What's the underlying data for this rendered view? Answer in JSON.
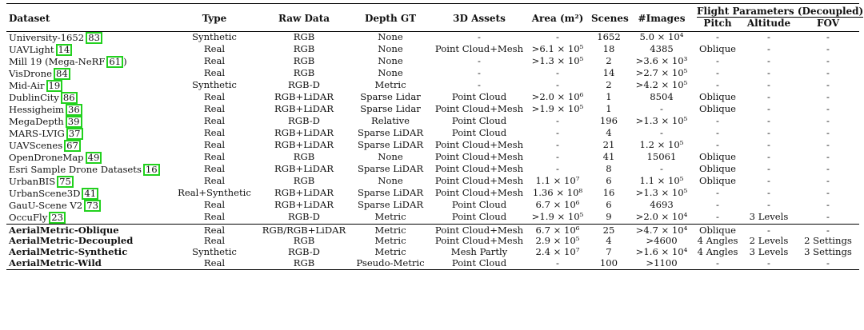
{
  "headers": {
    "dataset": "Dataset",
    "type": "Type",
    "raw_data": "Raw Data",
    "depth_gt": "Depth GT",
    "assets": "3D Assets",
    "area": "Area (m²)",
    "scenes": "Scenes",
    "images": "#Images",
    "flight": "Flight Parameters (Decoupled)",
    "pitch": "Pitch",
    "altitude": "Altitude",
    "fov": "FOV"
  },
  "rows": [
    {
      "name": "University-1652",
      "cite": "83",
      "cite_suffix": "",
      "type": "Synthetic",
      "raw": "RGB",
      "depth": "None",
      "assets": "-",
      "area": "-",
      "scenes": "1652",
      "images": "5.0 × 10⁴",
      "pitch": "-",
      "altitude": "-",
      "fov": "-"
    },
    {
      "name": "UAVLight",
      "cite": "14",
      "cite_suffix": "",
      "type": "Real",
      "raw": "RGB",
      "depth": "None",
      "assets": "Point Cloud+Mesh",
      "area": ">6.1 × 10⁵",
      "scenes": "18",
      "images": "4385",
      "pitch": "Oblique",
      "altitude": "-",
      "fov": "-"
    },
    {
      "name": "Mill 19 (Mega-NeRF",
      "cite": "61",
      "cite_suffix": ")",
      "type": "Real",
      "raw": "RGB",
      "depth": "None",
      "assets": "-",
      "area": ">1.3 × 10⁵",
      "scenes": "2",
      "images": ">3.6 × 10³",
      "pitch": "-",
      "altitude": "-",
      "fov": "-"
    },
    {
      "name": "VisDrone",
      "cite": "84",
      "cite_suffix": "",
      "type": "Real",
      "raw": "RGB",
      "depth": "None",
      "assets": "-",
      "area": "-",
      "scenes": "14",
      "images": ">2.7 × 10⁵",
      "pitch": "-",
      "altitude": "-",
      "fov": "-"
    },
    {
      "name": "Mid-Air",
      "cite": "19",
      "cite_suffix": "",
      "type": "Synthetic",
      "raw": "RGB-D",
      "depth": "Metric",
      "assets": "-",
      "area": "-",
      "scenes": "2",
      "images": ">4.2 × 10⁵",
      "pitch": "-",
      "altitude": "-",
      "fov": "-"
    },
    {
      "name": "DublinCity",
      "cite": "86",
      "cite_suffix": "",
      "type": "Real",
      "raw": "RGB+LiDAR",
      "depth": "Sparse Lidar",
      "assets": "Point Cloud",
      "area": ">2.0 × 10⁶",
      "scenes": "1",
      "images": "8504",
      "pitch": "Oblique",
      "altitude": "-",
      "fov": "-"
    },
    {
      "name": "Hessigheim",
      "cite": "36",
      "cite_suffix": "",
      "type": "Real",
      "raw": "RGB+LiDAR",
      "depth": "Sparse Lidar",
      "assets": "Point Cloud+Mesh",
      "area": ">1.9 × 10⁵",
      "scenes": "1",
      "images": "-",
      "pitch": "Oblique",
      "altitude": "-",
      "fov": "-"
    },
    {
      "name": "MegaDepth",
      "cite": "39",
      "cite_suffix": "",
      "type": "Real",
      "raw": "RGB-D",
      "depth": "Relative",
      "assets": "Point Cloud",
      "area": "-",
      "scenes": "196",
      "images": ">1.3 × 10⁵",
      "pitch": "-",
      "altitude": "-",
      "fov": "-"
    },
    {
      "name": "MARS-LVIG",
      "cite": "37",
      "cite_suffix": "",
      "type": "Real",
      "raw": "RGB+LiDAR",
      "depth": "Sparse LiDAR",
      "assets": "Point Cloud",
      "area": "-",
      "scenes": "4",
      "images": "-",
      "pitch": "-",
      "altitude": "-",
      "fov": "-"
    },
    {
      "name": "UAVScenes",
      "cite": "67",
      "cite_suffix": "",
      "type": "Real",
      "raw": "RGB+LiDAR",
      "depth": "Sparse LiDAR",
      "assets": "Point Cloud+Mesh",
      "area": "-",
      "scenes": "21",
      "images": "1.2 × 10⁵",
      "pitch": "-",
      "altitude": "-",
      "fov": "-"
    },
    {
      "name": "OpenDroneMap",
      "cite": "49",
      "cite_suffix": "",
      "type": "Real",
      "raw": "RGB",
      "depth": "None",
      "assets": "Point Cloud+Mesh",
      "area": "-",
      "scenes": "41",
      "images": "15061",
      "pitch": "Oblique",
      "altitude": "-",
      "fov": "-"
    },
    {
      "name": "Esri Sample Drone Datasets",
      "cite": "16",
      "cite_suffix": "",
      "type": "Real",
      "raw": "RGB+LiDAR",
      "depth": "Sparse LiDAR",
      "assets": "Point Cloud+Mesh",
      "area": "-",
      "scenes": "8",
      "images": "-",
      "pitch": "Oblique",
      "altitude": "-",
      "fov": "-"
    },
    {
      "name": "UrbanBIS",
      "cite": "75",
      "cite_suffix": "",
      "type": "Real",
      "raw": "RGB",
      "depth": "None",
      "assets": "Point Cloud+Mesh",
      "area": "1.1 × 10⁷",
      "scenes": "6",
      "images": "1.1 × 10⁵",
      "pitch": "Oblique",
      "altitude": "-",
      "fov": "-"
    },
    {
      "name": "UrbanScene3D",
      "cite": "41",
      "cite_suffix": "",
      "type": "Real+Synthetic",
      "raw": "RGB+LiDAR",
      "depth": "Sparse LiDAR",
      "assets": "Point Cloud+Mesh",
      "area": "1.36 × 10⁸",
      "scenes": "16",
      "images": ">1.3 × 10⁵",
      "pitch": "-",
      "altitude": "-",
      "fov": "-"
    },
    {
      "name": "GauU-Scene V2",
      "cite": "73",
      "cite_suffix": "",
      "type": "Real",
      "raw": "RGB+LiDAR",
      "depth": "Sparse LiDAR",
      "assets": "Point Cloud",
      "area": "6.7 × 10⁶",
      "scenes": "6",
      "images": "4693",
      "pitch": "-",
      "altitude": "-",
      "fov": "-"
    },
    {
      "name": "OccuFly",
      "cite": "23",
      "cite_suffix": "",
      "type": "Real",
      "raw": "RGB-D",
      "depth": "Metric",
      "assets": "Point Cloud",
      "area": ">1.9 × 10⁵",
      "scenes": "9",
      "images": ">2.0 × 10⁴",
      "pitch": "-",
      "altitude": "3 Levels",
      "fov": "-"
    }
  ],
  "ours": [
    {
      "name": "AerialMetric-Oblique",
      "type": "Real",
      "raw": "RGB/RGB+LiDAR",
      "depth": "Metric",
      "assets": "Point Cloud+Mesh",
      "area": "6.7 × 10⁶",
      "scenes": "25",
      "images": ">4.7 × 10⁴",
      "pitch": "Oblique",
      "altitude": "-",
      "fov": "-"
    },
    {
      "name": "AerialMetric-Decoupled",
      "type": "Real",
      "raw": "RGB",
      "depth": "Metric",
      "assets": "Point Cloud+Mesh",
      "area": "2.9 × 10⁵",
      "scenes": "4",
      "images": ">4600",
      "pitch": "4 Angles",
      "altitude": "2 Levels",
      "fov": "2 Settings"
    },
    {
      "name": "AerialMetric-Synthetic",
      "type": "Synthetic",
      "raw": "RGB-D",
      "depth": "Metric",
      "assets": "Mesh Partly",
      "area": "2.4 × 10⁷",
      "scenes": "7",
      "images": ">1.6 × 10⁴",
      "pitch": "4 Angles",
      "altitude": "3 Levels",
      "fov": "3 Settings"
    },
    {
      "name": "AerialMetric-Wild",
      "type": "Real",
      "raw": "RGB",
      "depth": "Pseudo-Metric",
      "assets": "Point Cloud",
      "area": "-",
      "scenes": "100",
      "images": ">1100",
      "pitch": "-",
      "altitude": "-",
      "fov": "-"
    }
  ]
}
